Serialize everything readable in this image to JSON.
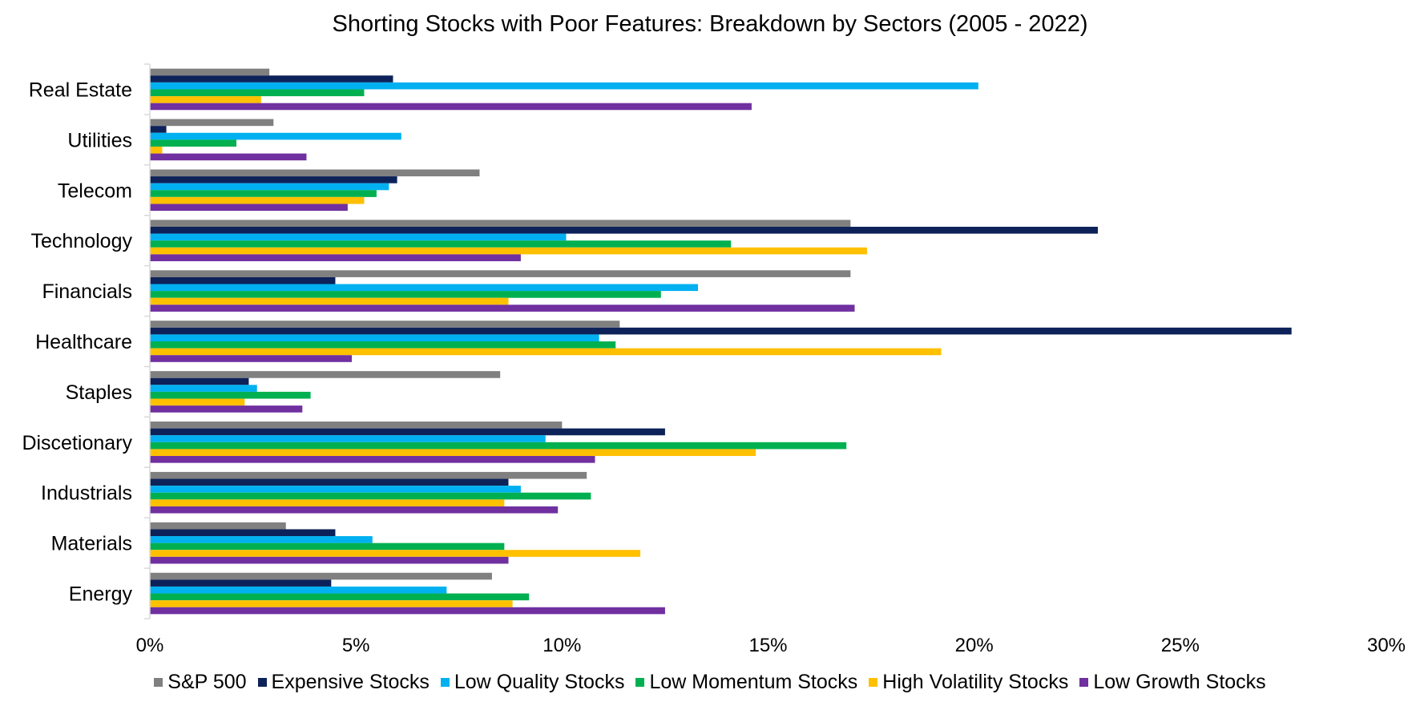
{
  "chart_data": {
    "type": "bar",
    "orientation": "horizontal",
    "title": "Shorting Stocks with Poor Features: Breakdown by Sectors (2005 - 2022)",
    "xlabel": "",
    "ylabel": "",
    "xlim": [
      0,
      30
    ],
    "x_ticks": [
      "0%",
      "5%",
      "10%",
      "15%",
      "20%",
      "25%",
      "30%"
    ],
    "x_tick_values": [
      0,
      5,
      10,
      15,
      20,
      25,
      30
    ],
    "grid": false,
    "legend_position": "bottom",
    "categories": [
      "Real Estate",
      "Utilities",
      "Telecom",
      "Technology",
      "Financials",
      "Healthcare",
      "Staples",
      "Discetionary",
      "Industrials",
      "Materials",
      "Energy"
    ],
    "series": [
      {
        "name": "S&P 500",
        "color": "#808080",
        "values": [
          2.9,
          3.0,
          8.0,
          17.0,
          17.0,
          11.4,
          8.5,
          10.0,
          10.6,
          3.3,
          8.3
        ]
      },
      {
        "name": "Expensive Stocks",
        "color": "#0d2259",
        "values": [
          5.9,
          0.4,
          6.0,
          23.0,
          4.5,
          27.7,
          2.4,
          12.5,
          8.7,
          4.5,
          4.4
        ]
      },
      {
        "name": "Low Quality Stocks",
        "color": "#00b0f0",
        "values": [
          20.1,
          6.1,
          5.8,
          10.1,
          13.3,
          10.9,
          2.6,
          9.6,
          9.0,
          5.4,
          7.2
        ]
      },
      {
        "name": "Low Momentum Stocks",
        "color": "#00b050",
        "values": [
          5.2,
          2.1,
          5.5,
          14.1,
          12.4,
          11.3,
          3.9,
          16.9,
          10.7,
          8.6,
          9.2
        ]
      },
      {
        "name": "High Volatility Stocks",
        "color": "#ffc000",
        "values": [
          2.7,
          0.3,
          5.2,
          17.4,
          8.7,
          19.2,
          2.3,
          14.7,
          8.6,
          11.9,
          8.8
        ]
      },
      {
        "name": "Low Growth Stocks",
        "color": "#7030a0",
        "values": [
          14.6,
          3.8,
          4.8,
          9.0,
          17.1,
          4.9,
          3.7,
          10.8,
          9.9,
          8.7,
          12.5
        ]
      }
    ]
  }
}
